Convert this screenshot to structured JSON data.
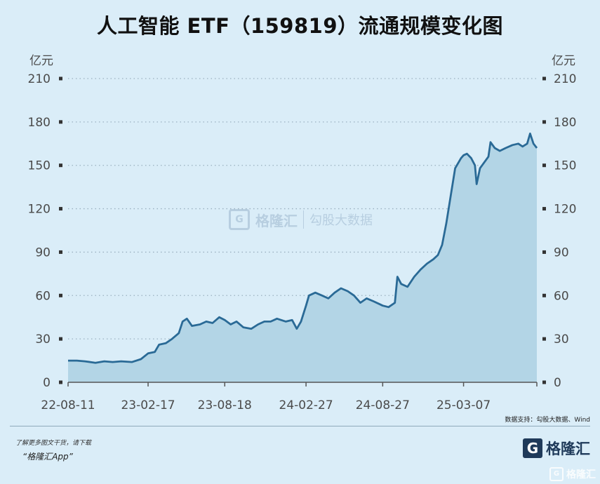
{
  "title": "人工智能 ETF（159819）流通规模变化图",
  "source": "数据支持：勾股大数据、Wind",
  "promo": {
    "line1": "了解更多图文干货，请下载",
    "line2": "“格隆汇App”"
  },
  "brand": {
    "name": "格隆汇",
    "mark": "G"
  },
  "watermark": {
    "left": "格隆汇",
    "right": "勾股大数据",
    "corner": "格隆汇"
  },
  "colors": {
    "background": "#daedf8",
    "line": "#2a6a96",
    "area": "#b3d5e6",
    "grid": "#9ab0bf"
  },
  "chart_data": {
    "type": "area",
    "unit_left": "亿元",
    "unit_right": "亿元",
    "ylim": [
      0,
      210
    ],
    "yticks": [
      0,
      30,
      60,
      90,
      120,
      150,
      180,
      210
    ],
    "xticks": [
      "22-08-11",
      "23-02-17",
      "23-08-18",
      "24-02-27",
      "24-08-27",
      "25-03-07"
    ],
    "grid": true,
    "series": [
      {
        "points": [
          [
            "2022-08-11",
            15
          ],
          [
            "2022-09-01",
            15
          ],
          [
            "2022-09-20",
            14.5
          ],
          [
            "2022-10-15",
            13.5
          ],
          [
            "2022-11-05",
            14.5
          ],
          [
            "2022-11-25",
            14
          ],
          [
            "2022-12-15",
            14.5
          ],
          [
            "2023-01-10",
            14
          ],
          [
            "2023-01-31",
            16
          ],
          [
            "2023-02-17",
            20
          ],
          [
            "2023-03-05",
            21
          ],
          [
            "2023-03-15",
            26
          ],
          [
            "2023-03-31",
            27
          ],
          [
            "2023-04-15",
            30
          ],
          [
            "2023-05-01",
            34
          ],
          [
            "2023-05-10",
            42
          ],
          [
            "2023-05-20",
            44
          ],
          [
            "2023-06-01",
            39
          ],
          [
            "2023-06-20",
            40
          ],
          [
            "2023-07-05",
            42
          ],
          [
            "2023-07-20",
            41
          ],
          [
            "2023-08-05",
            45
          ],
          [
            "2023-08-18",
            43
          ],
          [
            "2023-09-01",
            40
          ],
          [
            "2023-09-15",
            42
          ],
          [
            "2023-10-01",
            38
          ],
          [
            "2023-10-20",
            37
          ],
          [
            "2023-11-05",
            40
          ],
          [
            "2023-11-20",
            42
          ],
          [
            "2023-12-05",
            42
          ],
          [
            "2023-12-20",
            44
          ],
          [
            "2024-01-10",
            42
          ],
          [
            "2024-01-25",
            43
          ],
          [
            "2024-02-05",
            37
          ],
          [
            "2024-02-15",
            42
          ],
          [
            "2024-02-27",
            53
          ],
          [
            "2024-03-05",
            60
          ],
          [
            "2024-03-20",
            62
          ],
          [
            "2024-04-05",
            60
          ],
          [
            "2024-04-20",
            58
          ],
          [
            "2024-05-05",
            62
          ],
          [
            "2024-05-20",
            65
          ],
          [
            "2024-06-05",
            63
          ],
          [
            "2024-06-20",
            60
          ],
          [
            "2024-07-05",
            55
          ],
          [
            "2024-07-20",
            58
          ],
          [
            "2024-08-05",
            56
          ],
          [
            "2024-08-20",
            54
          ],
          [
            "2024-08-27",
            53
          ],
          [
            "2024-09-10",
            52
          ],
          [
            "2024-09-25",
            55
          ],
          [
            "2024-10-01",
            73
          ],
          [
            "2024-10-10",
            68
          ],
          [
            "2024-10-25",
            66
          ],
          [
            "2024-11-10",
            73
          ],
          [
            "2024-11-25",
            78
          ],
          [
            "2024-12-10",
            82
          ],
          [
            "2024-12-25",
            85
          ],
          [
            "2025-01-05",
            88
          ],
          [
            "2025-01-15",
            95
          ],
          [
            "2025-01-25",
            110
          ],
          [
            "2025-02-05",
            130
          ],
          [
            "2025-02-15",
            148
          ],
          [
            "2025-03-01",
            155
          ],
          [
            "2025-03-07",
            157
          ],
          [
            "2025-03-15",
            158
          ],
          [
            "2025-03-25",
            155
          ],
          [
            "2025-04-03",
            150
          ],
          [
            "2025-04-07",
            137
          ],
          [
            "2025-04-15",
            148
          ],
          [
            "2025-04-25",
            152
          ],
          [
            "2025-05-05",
            156
          ],
          [
            "2025-05-10",
            166
          ],
          [
            "2025-05-20",
            162
          ],
          [
            "2025-06-01",
            160
          ],
          [
            "2025-06-15",
            162
          ],
          [
            "2025-07-01",
            164
          ],
          [
            "2025-07-15",
            165
          ],
          [
            "2025-07-25",
            163
          ],
          [
            "2025-08-05",
            165
          ],
          [
            "2025-08-12",
            172
          ],
          [
            "2025-08-20",
            165
          ],
          [
            "2025-08-28",
            162
          ]
        ]
      }
    ]
  }
}
